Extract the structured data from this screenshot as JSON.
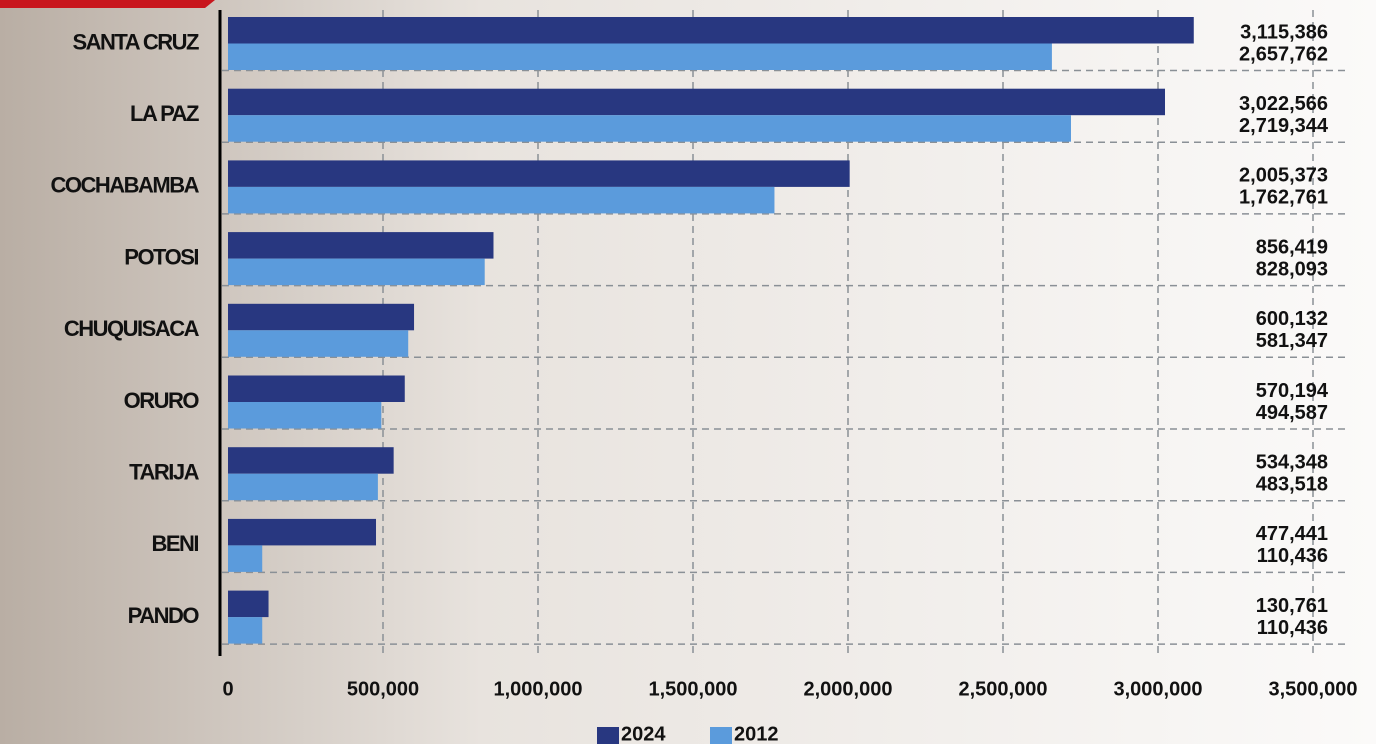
{
  "chart_data": {
    "type": "hbar",
    "categories": [
      "SANTA CRUZ",
      "LA PAZ",
      "COCHABAMBA",
      "POTOSI",
      "CHUQUISACA",
      "ORURO",
      "TARIJA",
      "BENI",
      "PANDO"
    ],
    "series": [
      {
        "name": "2024",
        "color": "#283780",
        "values": [
          3115386,
          3022566,
          2005373,
          856419,
          600132,
          570194,
          534348,
          477441,
          130761
        ],
        "value_labels": [
          "3,115,386",
          "3,022,566",
          "2,005,373",
          "856,419",
          "600,132",
          "570,194",
          "534,348",
          "477,441",
          "130,761"
        ]
      },
      {
        "name": "2012",
        "color": "#5b9bdc",
        "values": [
          2657762,
          2719344,
          1762761,
          828093,
          581347,
          494587,
          483518,
          110436,
          110436
        ],
        "value_labels": [
          "2,657,762",
          "2,719,344",
          "1,762,761",
          "828,093",
          "581,347",
          "494,587",
          "483,518",
          "110,436",
          "110,436"
        ]
      }
    ],
    "xlim": [
      0,
      3500000
    ],
    "xticks": [
      {
        "value": 0,
        "label": "0"
      },
      {
        "value": 500000,
        "label": "500,000"
      },
      {
        "value": 1000000,
        "label": "1,000,000"
      },
      {
        "value": 1500000,
        "label": "1,500,000"
      },
      {
        "value": 2000000,
        "label": "2,000,000"
      },
      {
        "value": 2500000,
        "label": "2,500,000"
      },
      {
        "value": 3000000,
        "label": "3,000,000"
      },
      {
        "value": 3500000,
        "label": "3,500,000"
      }
    ],
    "grid": true,
    "legend": "bottom"
  }
}
